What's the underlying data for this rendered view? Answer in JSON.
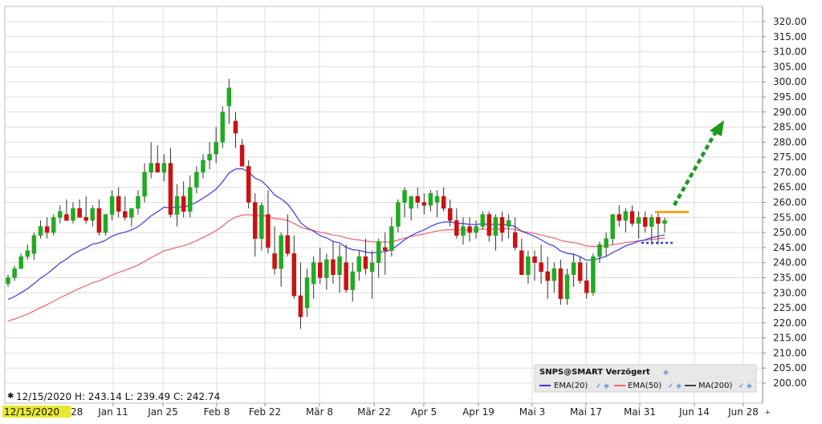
{
  "chart_data": {
    "type": "candlestick",
    "y_ticks": [
      "200.00",
      "205.00",
      "210.00",
      "215.00",
      "220.00",
      "225.00",
      "230.00",
      "235.00",
      "240.00",
      "245.00",
      "250.00",
      "255.00",
      "260.00",
      "265.00",
      "270.00",
      "275.00",
      "280.00",
      "285.00",
      "290.00",
      "295.00",
      "300.00",
      "305.00",
      "310.00",
      "315.00",
      "320.00"
    ],
    "ylim": [
      197,
      323
    ],
    "x_ticks": [
      "Jan 11",
      "Jan 25",
      "Feb 8",
      "Feb 22",
      "Mär 8",
      "Mär 22",
      "Apr 5",
      "Apr 19",
      "Mai 3",
      "Mai 17",
      "Mai 31",
      "Jun 14",
      "Jun 28"
    ],
    "first_date_label": "12/15/2020",
    "first_date_suffix": "28",
    "ohlc_readout": "12/15/2020 H: 243.14 L: 239.49 C: 242.74",
    "legend": {
      "title": "SNPS@SMART Verzögert",
      "items": [
        {
          "label": "EMA(20)",
          "color": "#3a3adf"
        },
        {
          "label": "EMA(50)",
          "color": "#f0606e"
        },
        {
          "label": "MA(200)",
          "color": "#444444"
        }
      ]
    },
    "colors": {
      "up": "#22aa22",
      "down": "#cc1111",
      "ema20": "#3a3adf",
      "ema50": "#f0606e",
      "resistance": "#f5a623",
      "support": "#3a3adf",
      "arrow": "#1a9a1a",
      "date_highlight": "#e8e830"
    },
    "candles": [
      [
        233,
        236,
        232,
        235
      ],
      [
        235,
        239,
        234,
        238
      ],
      [
        238,
        243,
        239,
        242
      ],
      [
        242,
        246,
        241,
        244
      ],
      [
        243,
        250,
        241,
        249
      ],
      [
        249,
        254,
        248,
        252
      ],
      [
        252,
        255,
        248,
        250
      ],
      [
        250,
        256,
        249,
        255
      ],
      [
        255,
        259,
        253,
        257
      ],
      [
        256,
        261,
        254,
        254
      ],
      [
        254,
        260,
        253,
        258
      ],
      [
        258,
        261,
        255,
        255
      ],
      [
        255,
        262,
        253,
        254
      ],
      [
        254,
        259,
        252,
        258
      ],
      [
        258,
        261,
        249,
        250
      ],
      [
        250,
        256,
        249,
        256
      ],
      [
        256,
        264,
        254,
        262
      ],
      [
        262,
        265,
        255,
        257
      ],
      [
        257,
        262,
        254,
        255
      ],
      [
        255,
        258,
        252,
        258
      ],
      [
        258,
        264,
        256,
        262
      ],
      [
        262,
        273,
        260,
        270
      ],
      [
        270,
        280,
        268,
        273
      ],
      [
        273,
        279,
        270,
        270
      ],
      [
        270,
        276,
        267,
        273
      ],
      [
        273,
        278,
        255,
        256
      ],
      [
        256,
        266,
        252,
        262
      ],
      [
        262,
        267,
        255,
        257
      ],
      [
        257,
        269,
        255,
        265
      ],
      [
        265,
        272,
        263,
        270
      ],
      [
        270,
        276,
        268,
        274
      ],
      [
        274,
        280,
        271,
        276
      ],
      [
        276,
        285,
        273,
        280
      ],
      [
        280,
        292,
        278,
        290
      ],
      [
        292,
        301,
        286,
        298
      ],
      [
        287,
        290,
        278,
        283
      ],
      [
        279,
        281,
        272,
        272
      ],
      [
        272,
        274,
        258,
        260
      ],
      [
        260,
        263,
        242,
        248
      ],
      [
        248,
        260,
        244,
        259
      ],
      [
        256,
        264,
        243,
        245
      ],
      [
        243,
        252,
        236,
        238
      ],
      [
        238,
        250,
        232,
        249
      ],
      [
        249,
        256,
        242,
        243
      ],
      [
        243,
        249,
        228,
        229
      ],
      [
        229,
        240,
        218,
        222
      ],
      [
        225,
        238,
        222,
        235
      ],
      [
        233,
        242,
        228,
        240
      ],
      [
        240,
        245,
        233,
        235
      ],
      [
        235,
        243,
        231,
        241
      ],
      [
        241,
        247,
        233,
        236
      ],
      [
        236,
        246,
        230,
        242
      ],
      [
        240,
        246,
        230,
        231
      ],
      [
        231,
        240,
        227,
        237
      ],
      [
        237,
        244,
        234,
        242
      ],
      [
        242,
        248,
        236,
        238
      ],
      [
        237,
        244,
        228,
        240
      ],
      [
        240,
        248,
        235,
        247
      ],
      [
        245,
        250,
        236,
        244
      ],
      [
        244,
        255,
        242,
        252
      ],
      [
        252,
        261,
        250,
        260
      ],
      [
        260,
        265,
        255,
        264
      ],
      [
        258,
        262,
        254,
        262
      ],
      [
        262,
        265,
        258,
        260
      ],
      [
        260,
        263,
        256,
        259
      ],
      [
        259,
        264,
        257,
        263
      ],
      [
        260,
        264,
        255,
        262
      ],
      [
        262,
        265,
        257,
        258
      ],
      [
        258,
        261,
        252,
        254
      ],
      [
        254,
        258,
        248,
        249
      ],
      [
        249,
        255,
        246,
        252
      ],
      [
        252,
        255,
        247,
        250
      ],
      [
        250,
        254,
        248,
        252
      ],
      [
        252,
        257,
        251,
        256
      ],
      [
        256,
        257,
        247,
        249
      ],
      [
        249,
        256,
        244,
        255
      ],
      [
        255,
        257,
        247,
        250
      ],
      [
        252,
        256,
        248,
        254
      ],
      [
        250,
        255,
        244,
        245
      ],
      [
        244,
        248,
        236,
        236
      ],
      [
        236,
        244,
        233,
        242
      ],
      [
        242,
        244,
        234,
        240
      ],
      [
        240,
        246,
        233,
        237
      ],
      [
        237,
        242,
        228,
        234
      ],
      [
        234,
        240,
        230,
        238
      ],
      [
        238,
        241,
        226,
        228
      ],
      [
        228,
        238,
        226,
        236
      ],
      [
        236,
        243,
        232,
        240
      ],
      [
        240,
        242,
        233,
        234
      ],
      [
        234,
        240,
        228,
        230
      ],
      [
        230,
        243,
        229,
        242
      ],
      [
        242,
        247,
        240,
        246
      ],
      [
        245,
        250,
        242,
        248
      ],
      [
        248,
        256,
        246,
        256
      ],
      [
        256,
        259,
        252,
        254
      ],
      [
        254,
        258,
        250,
        257
      ],
      [
        257,
        259,
        252,
        253
      ],
      [
        253,
        257,
        248,
        255
      ],
      [
        255,
        257,
        250,
        252
      ],
      [
        252,
        256,
        246,
        255
      ],
      [
        255,
        257,
        246,
        253
      ],
      [
        253,
        255,
        250,
        254
      ]
    ]
  }
}
